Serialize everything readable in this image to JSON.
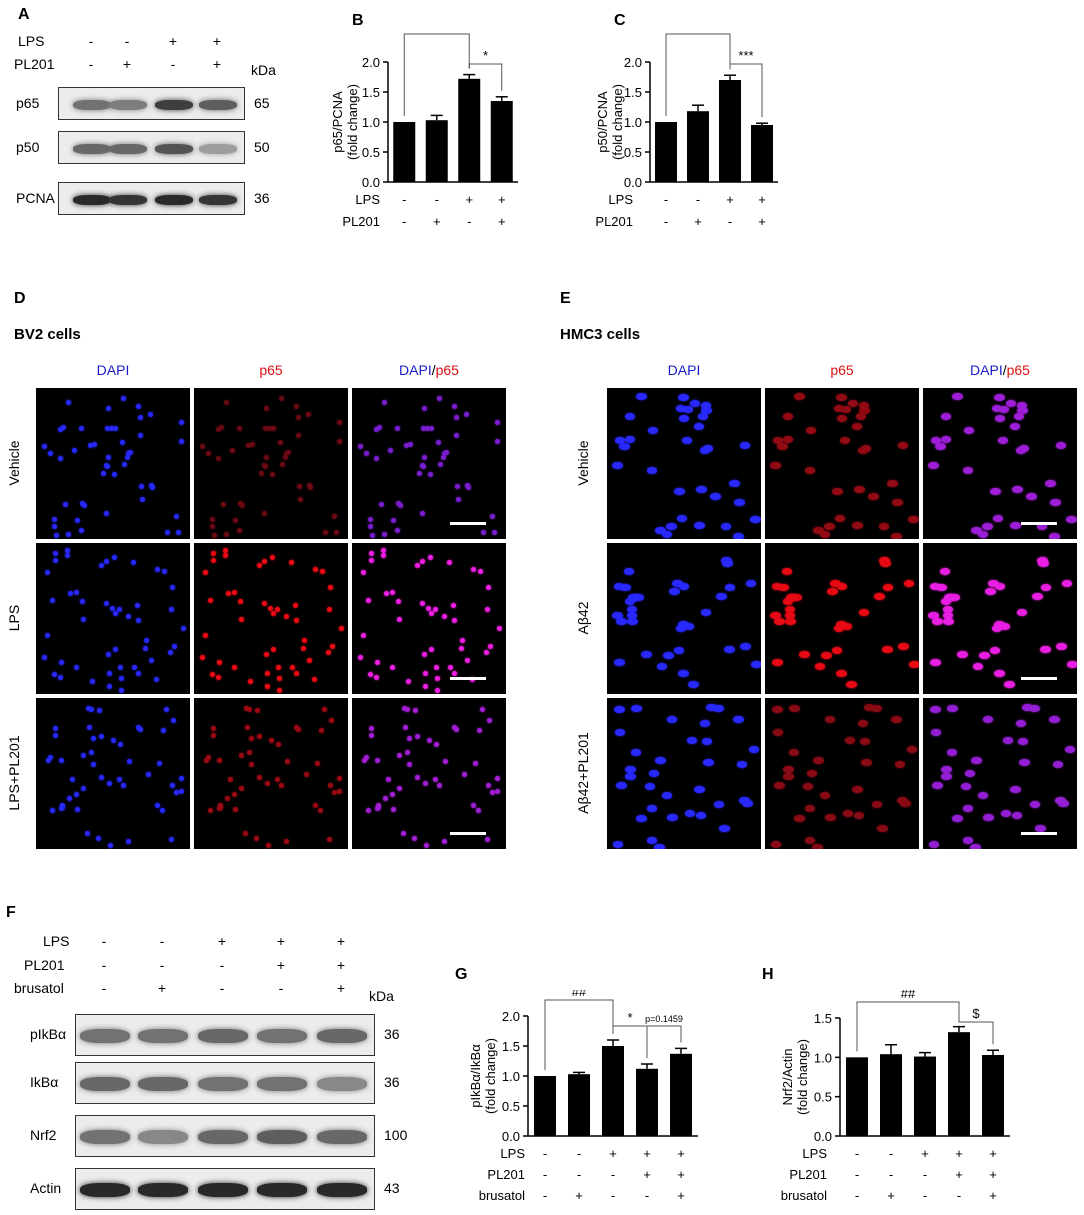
{
  "panelA": {
    "label": "A",
    "lps_label": "LPS",
    "lps": [
      "-",
      "-",
      "+",
      "+"
    ],
    "pl201_label": "PL201",
    "pl201": [
      "-",
      "+",
      "-",
      "+"
    ],
    "kda": "kDa",
    "rows": [
      {
        "name": "p65",
        "kda": "65",
        "intensity": [
          0.55,
          0.5,
          0.8,
          0.65
        ]
      },
      {
        "name": "p50",
        "kda": "50",
        "intensity": [
          0.6,
          0.6,
          0.7,
          0.35
        ]
      },
      {
        "name": "PCNA",
        "kda": "36",
        "intensity": [
          0.9,
          0.85,
          0.9,
          0.85
        ]
      }
    ]
  },
  "panelB": {
    "label": "B",
    "chart_data": {
      "type": "bar",
      "ylabel": "p65/PCNA (fold change)",
      "ylim": [
        0,
        2.0
      ],
      "yticks": [
        "0.0",
        "0.5",
        "1.0",
        "1.5",
        "2.0"
      ],
      "values": [
        1.0,
        1.03,
        1.72,
        1.35
      ],
      "errors": [
        0.0,
        0.08,
        0.07,
        0.07
      ],
      "factors": [
        {
          "name": "LPS",
          "levels": [
            "-",
            "-",
            "+",
            "+"
          ]
        },
        {
          "name": "PL201",
          "levels": [
            "-",
            "+",
            "-",
            "+"
          ]
        }
      ],
      "annotations": [
        {
          "from": 0,
          "to": 2,
          "text": "###"
        },
        {
          "from": 2,
          "to": 3,
          "text": "*"
        }
      ]
    }
  },
  "panelC": {
    "label": "C",
    "chart_data": {
      "type": "bar",
      "ylabel": "p50/PCNA (fold change)",
      "ylim": [
        0,
        2.0
      ],
      "yticks": [
        "0.0",
        "0.5",
        "1.0",
        "1.5",
        "2.0"
      ],
      "values": [
        1.0,
        1.18,
        1.7,
        0.95
      ],
      "errors": [
        0.0,
        0.1,
        0.08,
        0.03
      ],
      "factors": [
        {
          "name": "LPS",
          "levels": [
            "-",
            "-",
            "+",
            "+"
          ]
        },
        {
          "name": "PL201",
          "levels": [
            "-",
            "+",
            "-",
            "+"
          ]
        }
      ],
      "annotations": [
        {
          "from": 0,
          "to": 2,
          "text": "###"
        },
        {
          "from": 2,
          "to": 3,
          "text": "***"
        }
      ]
    }
  },
  "panelD": {
    "label": "D",
    "title": "BV2 cells",
    "columns": [
      "DAPI",
      "p65",
      "DAPI/p65"
    ],
    "rows": [
      "Vehicle",
      "LPS",
      "LPS+PL201"
    ]
  },
  "panelE": {
    "label": "E",
    "title": "HMC3 cells",
    "columns": [
      "DAPI",
      "p65",
      "DAPI/p65"
    ],
    "rows": [
      "Vehicle",
      "Aβ42",
      "Aβ42+PL201"
    ]
  },
  "panelF": {
    "label": "F",
    "lps_label": "LPS",
    "lps": [
      "-",
      "-",
      "+",
      "+",
      "+"
    ],
    "pl201_label": "PL201",
    "pl201": [
      "-",
      "-",
      "-",
      "+",
      "+"
    ],
    "brusatol_label": "brusatol",
    "brusatol": [
      "-",
      "+",
      "-",
      "-",
      "+"
    ],
    "kda": "kDa",
    "rows": [
      {
        "name": "pIkBα",
        "kda": "36",
        "intensity": [
          0.55,
          0.55,
          0.6,
          0.55,
          0.6
        ]
      },
      {
        "name": "IkBα",
        "kda": "36",
        "intensity": [
          0.6,
          0.6,
          0.55,
          0.55,
          0.45
        ]
      },
      {
        "name": "Nrf2",
        "kda": "100",
        "intensity": [
          0.55,
          0.45,
          0.6,
          0.65,
          0.6
        ]
      },
      {
        "name": "Actin",
        "kda": "43",
        "intensity": [
          0.9,
          0.9,
          0.9,
          0.9,
          0.9
        ]
      }
    ]
  },
  "panelG": {
    "label": "G",
    "chart_data": {
      "type": "bar",
      "ylabel": "pIkBα/IkBα (fold change)",
      "ylim": [
        0,
        2.0
      ],
      "yticks": [
        "0.0",
        "0.5",
        "1.0",
        "1.5",
        "2.0"
      ],
      "values": [
        1.0,
        1.03,
        1.5,
        1.12,
        1.37
      ],
      "errors": [
        0.0,
        0.03,
        0.1,
        0.08,
        0.09
      ],
      "factors": [
        {
          "name": "LPS",
          "levels": [
            "-",
            "-",
            "+",
            "+",
            "+"
          ]
        },
        {
          "name": "PL201",
          "levels": [
            "-",
            "-",
            "-",
            "+",
            "+"
          ]
        },
        {
          "name": "brusatol",
          "levels": [
            "-",
            "+",
            "-",
            "-",
            "+"
          ]
        }
      ],
      "annotations": [
        {
          "from": 0,
          "to": 2,
          "text": "##"
        },
        {
          "from": 2,
          "to": 3,
          "text": "*"
        },
        {
          "from": 3,
          "to": 4,
          "text": "p=0.1459"
        }
      ]
    }
  },
  "panelH": {
    "label": "H",
    "chart_data": {
      "type": "bar",
      "ylabel": "Nrf2/Actin (fold change)",
      "ylim": [
        0,
        1.5
      ],
      "yticks": [
        "0.0",
        "0.5",
        "1.0",
        "1.5"
      ],
      "values": [
        1.0,
        1.04,
        1.01,
        1.32,
        1.03
      ],
      "errors": [
        0.0,
        0.12,
        0.05,
        0.07,
        0.06
      ],
      "factors": [
        {
          "name": "LPS",
          "levels": [
            "-",
            "-",
            "+",
            "+",
            "+"
          ]
        },
        {
          "name": "PL201",
          "levels": [
            "-",
            "-",
            "-",
            "+",
            "+"
          ]
        },
        {
          "name": "brusatol",
          "levels": [
            "-",
            "+",
            "-",
            "-",
            "+"
          ]
        }
      ],
      "annotations": [
        {
          "from": 0,
          "to": 3,
          "text": "##"
        },
        {
          "from": 3,
          "to": 4,
          "text": "$"
        }
      ]
    }
  }
}
